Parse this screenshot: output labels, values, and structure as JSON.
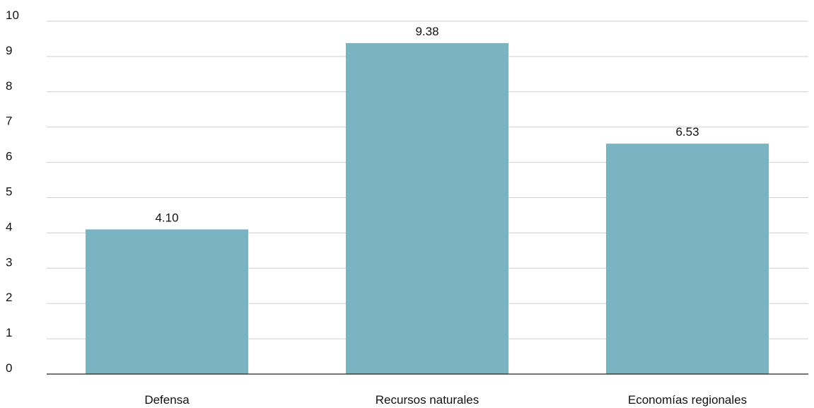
{
  "chart_data": {
    "type": "bar",
    "categories": [
      "Defensa",
      "Recursos naturales",
      "Economías regionales"
    ],
    "values": [
      4.1,
      9.38,
      6.53
    ],
    "value_labels": [
      "4.10",
      "9.38",
      "6.53"
    ],
    "ylim": [
      0,
      10
    ],
    "yticks": [
      0,
      1,
      2,
      3,
      4,
      5,
      6,
      7,
      8,
      9,
      10
    ],
    "title": "",
    "xlabel": "",
    "ylabel": "",
    "grid": true,
    "bar_color": "#7ab3c2"
  }
}
